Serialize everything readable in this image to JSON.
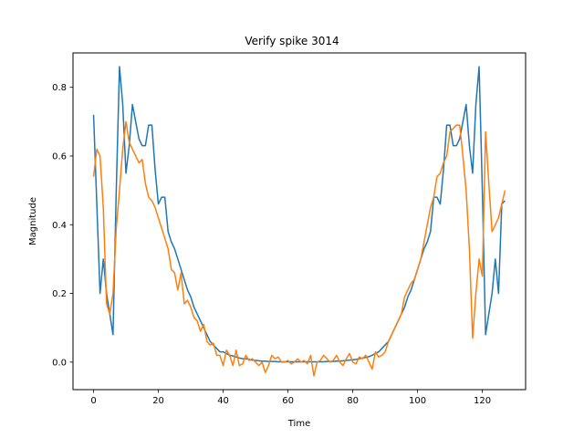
{
  "chart_data": {
    "type": "line",
    "title": "Verify spike 3014",
    "xlabel": "Time",
    "ylabel": "Magnitude",
    "xlim": [
      -6.35,
      133.35
    ],
    "ylim": [
      -0.08,
      0.9
    ],
    "xticks": [
      0,
      20,
      40,
      60,
      80,
      100,
      120
    ],
    "yticks": [
      0.0,
      0.2,
      0.4,
      0.6,
      0.8
    ],
    "ytick_labels": [
      "0.0",
      "0.2",
      "0.4",
      "0.6",
      "0.8"
    ],
    "grid": false,
    "series": [
      {
        "color": "#1f77b4",
        "x": [
          0,
          1,
          2,
          3,
          4,
          5,
          6,
          7,
          8,
          9,
          10,
          11,
          12,
          13,
          14,
          15,
          16,
          17,
          18,
          19,
          20,
          21,
          22,
          23,
          24,
          25,
          26,
          27,
          28,
          29,
          30,
          31,
          32,
          33,
          34,
          35,
          36,
          37,
          38,
          39,
          40,
          41,
          42,
          43,
          44,
          45,
          46,
          47,
          48,
          49,
          50,
          51,
          52,
          53,
          54,
          55,
          56,
          57,
          58,
          59,
          60,
          61,
          62,
          63,
          64,
          65,
          66,
          67,
          68,
          69,
          70,
          71,
          72,
          73,
          74,
          75,
          76,
          77,
          78,
          79,
          80,
          81,
          82,
          83,
          84,
          85,
          86,
          87,
          88,
          89,
          90,
          91,
          92,
          93,
          94,
          95,
          96,
          97,
          98,
          99,
          100,
          101,
          102,
          103,
          104,
          105,
          106,
          107,
          108,
          109,
          110,
          111,
          112,
          113,
          114,
          115,
          116,
          117,
          118,
          119,
          120,
          121,
          122,
          123,
          124,
          125,
          126,
          127
        ],
        "y": [
          0.72,
          0.46,
          0.2,
          0.3,
          0.2,
          0.14,
          0.08,
          0.5,
          0.86,
          0.75,
          0.55,
          0.63,
          0.75,
          0.7,
          0.65,
          0.63,
          0.63,
          0.69,
          0.69,
          0.56,
          0.46,
          0.48,
          0.48,
          0.38,
          0.35,
          0.33,
          0.3,
          0.27,
          0.24,
          0.21,
          0.19,
          0.16,
          0.14,
          0.12,
          0.1,
          0.08,
          0.06,
          0.05,
          0.04,
          0.03,
          0.03,
          0.025,
          0.02,
          0.018,
          0.015,
          0.012,
          0.01,
          0.01,
          0.008,
          0.006,
          0.005,
          0.004,
          0.003,
          0.003,
          0.002,
          0.002,
          0.002,
          0.001,
          0.001,
          0.001,
          0.001,
          0.001,
          0.001,
          0.001,
          0.001,
          0.001,
          0.001,
          0.001,
          0.001,
          0.001,
          0.001,
          0.001,
          0.002,
          0.002,
          0.002,
          0.003,
          0.003,
          0.004,
          0.005,
          0.006,
          0.007,
          0.008,
          0.01,
          0.012,
          0.014,
          0.016,
          0.02,
          0.025,
          0.03,
          0.04,
          0.05,
          0.06,
          0.08,
          0.1,
          0.12,
          0.14,
          0.16,
          0.19,
          0.21,
          0.24,
          0.27,
          0.3,
          0.33,
          0.35,
          0.38,
          0.48,
          0.48,
          0.46,
          0.56,
          0.69,
          0.69,
          0.63,
          0.63,
          0.65,
          0.7,
          0.75,
          0.63,
          0.55,
          0.75,
          0.86,
          0.5,
          0.08,
          0.14,
          0.2,
          0.3,
          0.2,
          0.46,
          0.47
        ]
      },
      {
        "color": "#ff7f0e",
        "x": [
          0,
          1,
          2,
          3,
          4,
          5,
          6,
          7,
          8,
          9,
          10,
          11,
          12,
          13,
          14,
          15,
          16,
          17,
          18,
          19,
          20,
          21,
          22,
          23,
          24,
          25,
          26,
          27,
          28,
          29,
          30,
          31,
          32,
          33,
          34,
          35,
          36,
          37,
          38,
          39,
          40,
          41,
          42,
          43,
          44,
          45,
          46,
          47,
          48,
          49,
          50,
          51,
          52,
          53,
          54,
          55,
          56,
          57,
          58,
          59,
          60,
          61,
          62,
          63,
          64,
          65,
          66,
          67,
          68,
          69,
          70,
          71,
          72,
          73,
          74,
          75,
          76,
          77,
          78,
          79,
          80,
          81,
          82,
          83,
          84,
          85,
          86,
          87,
          88,
          89,
          90,
          91,
          92,
          93,
          94,
          95,
          96,
          97,
          98,
          99,
          100,
          101,
          102,
          103,
          104,
          105,
          106,
          107,
          108,
          109,
          110,
          111,
          112,
          113,
          114,
          115,
          116,
          117,
          118,
          119,
          120,
          121,
          122,
          123,
          124,
          125,
          126,
          127
        ],
        "y": [
          0.54,
          0.62,
          0.6,
          0.45,
          0.17,
          0.14,
          0.2,
          0.39,
          0.5,
          0.62,
          0.7,
          0.64,
          0.62,
          0.6,
          0.58,
          0.59,
          0.52,
          0.48,
          0.47,
          0.45,
          0.42,
          0.39,
          0.36,
          0.33,
          0.27,
          0.26,
          0.21,
          0.26,
          0.17,
          0.18,
          0.16,
          0.13,
          0.12,
          0.09,
          0.11,
          0.06,
          0.05,
          0.055,
          0.02,
          0.02,
          -0.01,
          0.035,
          0.02,
          -0.01,
          0.035,
          -0.01,
          -0.005,
          0.02,
          0.005,
          0.01,
          0.0,
          -0.01,
          0.0,
          -0.03,
          -0.01,
          0.02,
          0.01,
          0.015,
          0.0,
          0.0,
          0.005,
          -0.005,
          0.0,
          0.01,
          0.0,
          0.005,
          -0.005,
          0.02,
          -0.04,
          0.0,
          0.005,
          0.02,
          0.01,
          0.0,
          0.005,
          0.02,
          0.0,
          -0.01,
          0.01,
          0.025,
          0.0,
          -0.005,
          0.015,
          0.01,
          0.02,
          0.0,
          -0.02,
          0.03,
          0.015,
          0.02,
          0.03,
          0.06,
          0.08,
          0.1,
          0.12,
          0.14,
          0.19,
          0.21,
          0.23,
          0.24,
          0.27,
          0.3,
          0.35,
          0.4,
          0.45,
          0.48,
          0.54,
          0.55,
          0.58,
          0.6,
          0.67,
          0.68,
          0.69,
          0.69,
          0.6,
          0.5,
          0.33,
          0.07,
          0.2,
          0.3,
          0.25,
          0.67,
          0.52,
          0.38,
          0.4,
          0.42,
          0.46,
          0.5
        ]
      }
    ]
  }
}
